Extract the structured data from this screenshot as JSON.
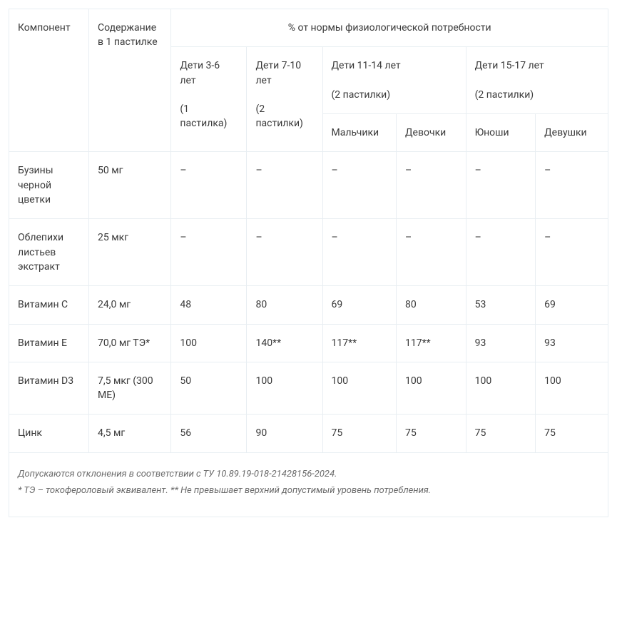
{
  "table": {
    "border_color": "#e8eef2",
    "text_color": "#3a3a3a",
    "footnote_color": "#6b6b6b",
    "font_size_pt": 14,
    "footnote_font_size_pt": 13,
    "headers": {
      "component": "Компонент",
      "content_per_lozenge": "Содержание в 1 пастилке",
      "top_group": "% от нормы физиологической потребности",
      "age_3_6": "Дети 3-6 лет",
      "age_3_6_note": "(1 пастилка)",
      "age_7_10": "Дети 7-10 лет",
      "age_7_10_note": "(2 пастилки)",
      "age_11_14": "Дети 11-14 лет",
      "age_11_14_note": "(2 пастилки)",
      "age_15_17": "Дети 15-17 лет",
      "age_15_17_note": "(2 пастилки)",
      "boys": "Мальчики",
      "girls": "Девочки",
      "young_men": "Юноши",
      "young_women": "Девушки"
    },
    "rows": [
      {
        "component": "Бузины черной цветки",
        "content": "50 мг",
        "v": [
          "–",
          "–",
          "–",
          "–",
          "–",
          "–"
        ]
      },
      {
        "component": "Облепихи листьев экстракт",
        "content": "25 мкг",
        "v": [
          "–",
          "–",
          "–",
          "–",
          "–",
          "–"
        ]
      },
      {
        "component": "Витамин С",
        "content": "24,0 мг",
        "v": [
          "48",
          "80",
          "69",
          "80",
          "53",
          "69"
        ]
      },
      {
        "component": "Витамин Е",
        "content": "70,0 мг ТЭ*",
        "v": [
          "100",
          "140**",
          "117**",
          "117**",
          "93",
          "93"
        ]
      },
      {
        "component": "Витамин D3",
        "content": "7,5 мкг (300 МЕ)",
        "v": [
          "50",
          "100",
          "100",
          "100",
          "100",
          "100"
        ]
      },
      {
        "component": "Цинк",
        "content": "4,5 мг",
        "v": [
          "56",
          "90",
          "75",
          "75",
          "75",
          "75"
        ]
      }
    ],
    "footnotes": [
      "Допускаются отклонения в соответствии с ТУ 10.89.19-018-21428156-2024.",
      "* ТЭ – токофероловый эквивалент. ** Не превышает верхний допустимый уровень потребления."
    ]
  }
}
